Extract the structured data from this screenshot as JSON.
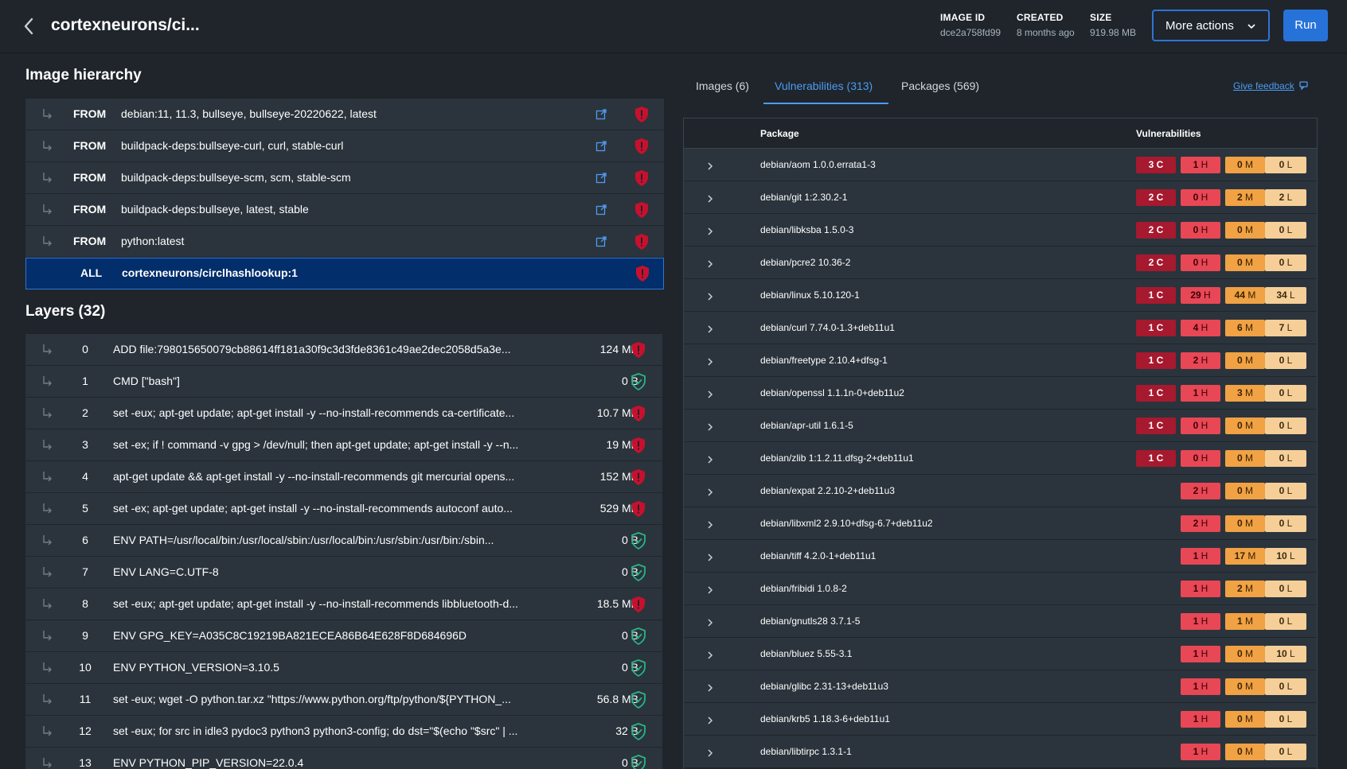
{
  "header": {
    "title": "cortexneurons/ci...",
    "image_id_label": "IMAGE ID",
    "image_id_value": "dce2a758fd99",
    "created_label": "CREATED",
    "created_value": "8 months ago",
    "size_label": "SIZE",
    "size_value": "919.98 MB",
    "more_actions": "More actions",
    "run": "Run"
  },
  "hierarchy": {
    "title": "Image hierarchy",
    "rows": [
      {
        "type": "FROM",
        "image": "debian:11, 11.3, bullseye, bullseye-20220622, latest"
      },
      {
        "type": "FROM",
        "image": "buildpack-deps:bullseye-curl, curl, stable-curl"
      },
      {
        "type": "FROM",
        "image": "buildpack-deps:bullseye-scm, scm, stable-scm"
      },
      {
        "type": "FROM",
        "image": "buildpack-deps:bullseye, latest, stable"
      },
      {
        "type": "FROM",
        "image": "python:latest"
      }
    ],
    "active": {
      "type": "ALL",
      "image": "cortexneurons/circlhashlookup:1"
    }
  },
  "layers": {
    "title": "Layers (32)",
    "rows": [
      {
        "index": "0",
        "command": "ADD file:798015650079cb88614ff181a30f9c3d3fde8361c49ae2dec2058d5a3e...",
        "size": "124 MB",
        "status": "vulnerable"
      },
      {
        "index": "1",
        "command": "CMD [\"bash\"]",
        "size": "0 B",
        "status": "safe"
      },
      {
        "index": "2",
        "command": "set -eux; apt-get update; apt-get install -y --no-install-recommends ca-certificate...",
        "size": "10.7 MB",
        "status": "vulnerable"
      },
      {
        "index": "3",
        "command": "set -ex; if ! command -v gpg > /dev/null; then apt-get update; apt-get install -y --n...",
        "size": "19 MB",
        "status": "vulnerable"
      },
      {
        "index": "4",
        "command": "apt-get update && apt-get install -y --no-install-recommends git mercurial opens...",
        "size": "152 MB",
        "status": "vulnerable"
      },
      {
        "index": "5",
        "command": "set -ex; apt-get update; apt-get install -y --no-install-recommends autoconf auto...",
        "size": "529 MB",
        "status": "vulnerable"
      },
      {
        "index": "6",
        "command": "ENV PATH=/usr/local/bin:/usr/local/sbin:/usr/local/bin:/usr/sbin:/usr/bin:/sbin...",
        "size": "0 B",
        "status": "safe"
      },
      {
        "index": "7",
        "command": "ENV LANG=C.UTF-8",
        "size": "0 B",
        "status": "safe"
      },
      {
        "index": "8",
        "command": "set -eux; apt-get update; apt-get install -y --no-install-recommends libbluetooth-d...",
        "size": "18.5 MB",
        "status": "vulnerable"
      },
      {
        "index": "9",
        "command": "ENV GPG_KEY=A035C8C19219BA821ECEA86B64E628F8D684696D",
        "size": "0 B",
        "status": "safe"
      },
      {
        "index": "10",
        "command": "ENV PYTHON_VERSION=3.10.5",
        "size": "0 B",
        "status": "safe"
      },
      {
        "index": "11",
        "command": "set -eux; wget -O python.tar.xz \"https://www.python.org/ftp/python/${PYTHON_...",
        "size": "56.8 MB",
        "status": "safe"
      },
      {
        "index": "12",
        "command": "set -eux; for src in idle3 pydoc3 python3 python3-config; do dst=\"$(echo \"$src\" | ...",
        "size": "32 B",
        "status": "safe"
      },
      {
        "index": "13",
        "command": "ENV PYTHON_PIP_VERSION=22.0.4",
        "size": "0 B",
        "status": "safe"
      }
    ]
  },
  "tabs": [
    {
      "label": "Images (6)",
      "active": false
    },
    {
      "label": "Vulnerabilities (313)",
      "active": true
    },
    {
      "label": "Packages (569)",
      "active": false
    }
  ],
  "feedback": "Give feedback",
  "packages": {
    "header_package": "Package",
    "header_vulns": "Vulnerabilities",
    "rows": [
      {
        "name": "debian/aom 1.0.0.errata1-3",
        "c": "3",
        "h": "1",
        "m": "0",
        "l": "0"
      },
      {
        "name": "debian/git 1:2.30.2-1",
        "c": "2",
        "h": "0",
        "m": "2",
        "l": "2"
      },
      {
        "name": "debian/libksba 1.5.0-3",
        "c": "2",
        "h": "0",
        "m": "0",
        "l": "0"
      },
      {
        "name": "debian/pcre2 10.36-2",
        "c": "2",
        "h": "0",
        "m": "0",
        "l": "0"
      },
      {
        "name": "debian/linux 5.10.120-1",
        "c": "1",
        "h": "29",
        "m": "44",
        "l": "34"
      },
      {
        "name": "debian/curl 7.74.0-1.3+deb11u1",
        "c": "1",
        "h": "4",
        "m": "6",
        "l": "7"
      },
      {
        "name": "debian/freetype 2.10.4+dfsg-1",
        "c": "1",
        "h": "2",
        "m": "0",
        "l": "0"
      },
      {
        "name": "debian/openssl 1.1.1n-0+deb11u2",
        "c": "1",
        "h": "1",
        "m": "3",
        "l": "0"
      },
      {
        "name": "debian/apr-util 1.6.1-5",
        "c": "1",
        "h": "0",
        "m": "0",
        "l": "0"
      },
      {
        "name": "debian/zlib 1:1.2.11.dfsg-2+deb11u1",
        "c": "1",
        "h": "0",
        "m": "0",
        "l": "0"
      },
      {
        "name": "debian/expat 2.2.10-2+deb11u3",
        "c": null,
        "h": "2",
        "m": "0",
        "l": "0"
      },
      {
        "name": "debian/libxml2 2.9.10+dfsg-6.7+deb11u2",
        "c": null,
        "h": "2",
        "m": "0",
        "l": "0"
      },
      {
        "name": "debian/tiff 4.2.0-1+deb11u1",
        "c": null,
        "h": "1",
        "m": "17",
        "l": "10"
      },
      {
        "name": "debian/fribidi 1.0.8-2",
        "c": null,
        "h": "1",
        "m": "2",
        "l": "0"
      },
      {
        "name": "debian/gnutls28 3.7.1-5",
        "c": null,
        "h": "1",
        "m": "1",
        "l": "0"
      },
      {
        "name": "debian/bluez 5.55-3.1",
        "c": null,
        "h": "1",
        "m": "0",
        "l": "10"
      },
      {
        "name": "debian/glibc 2.31-13+deb11u3",
        "c": null,
        "h": "1",
        "m": "0",
        "l": "0"
      },
      {
        "name": "debian/krb5 1.18.3-6+deb11u1",
        "c": null,
        "h": "1",
        "m": "0",
        "l": "0"
      },
      {
        "name": "debian/libtirpc 1.3.1-1",
        "c": null,
        "h": "1",
        "m": "0",
        "l": "0"
      }
    ]
  },
  "colors": {
    "critical": "#a6192e",
    "high": "#e84755",
    "medium": "#f0a244",
    "low": "#f6cf98",
    "accent": "#2672d9",
    "safe": "#27b586"
  },
  "icons": [
    "back-arrow-icon",
    "chevron-down-icon",
    "external-link-icon",
    "shield-alert-icon",
    "shield-check-icon",
    "child-arrow-icon",
    "expand-chevron-icon",
    "feedback-icon"
  ]
}
